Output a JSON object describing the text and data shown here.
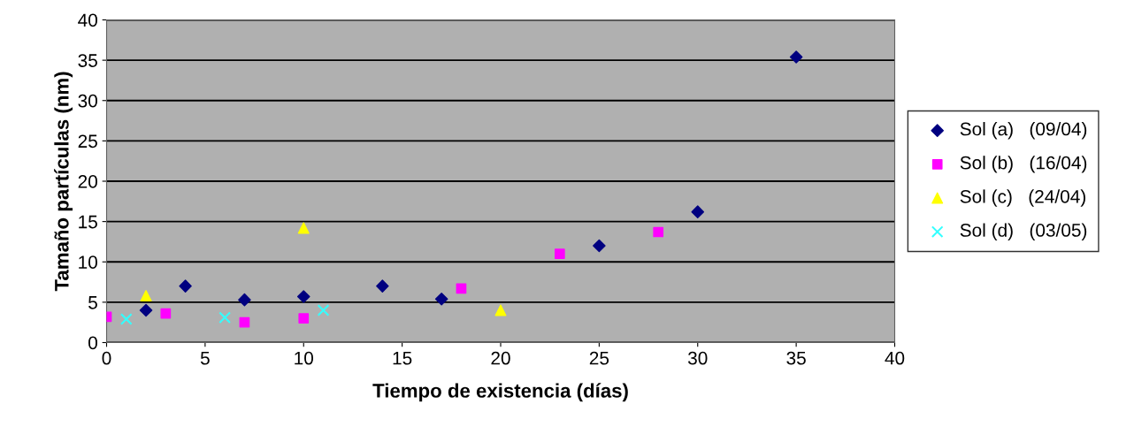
{
  "chart_data": {
    "type": "scatter",
    "xlabel": "Tiempo de existencia (días)",
    "ylabel": "Tamaño partículas (nm)",
    "xlim": [
      0,
      40
    ],
    "xticks": [
      0,
      5,
      10,
      15,
      20,
      25,
      30,
      35,
      40
    ],
    "ylim": [
      0,
      40
    ],
    "yticks": [
      0,
      5,
      10,
      15,
      20,
      25,
      30,
      35,
      40
    ],
    "grid": "y",
    "legend": "right",
    "series": [
      {
        "name": "Sol (a)   (09/04)",
        "color": "#000080",
        "marker": "diamond",
        "x": [
          2,
          4,
          7,
          10,
          14,
          17,
          25,
          30,
          35
        ],
        "values": [
          4,
          7,
          5.3,
          5.7,
          7,
          5.4,
          12,
          16.2,
          35.4
        ]
      },
      {
        "name": "Sol (b)   (16/04)",
        "color": "#ff00ff",
        "marker": "square",
        "x": [
          0,
          3,
          7,
          10,
          18,
          23,
          28
        ],
        "values": [
          3.2,
          3.6,
          2.5,
          3,
          6.7,
          11,
          13.7
        ]
      },
      {
        "name": "Sol (c)   (24/04)",
        "color": "#ffff00",
        "marker": "triangle",
        "x": [
          2,
          10,
          20
        ],
        "values": [
          5.8,
          14.2,
          4
        ]
      },
      {
        "name": "Sol (d)   (03/05)",
        "color": "#33ffff",
        "marker": "cross",
        "x": [
          1,
          6,
          11
        ],
        "values": [
          2.9,
          3.1,
          4
        ]
      }
    ]
  }
}
